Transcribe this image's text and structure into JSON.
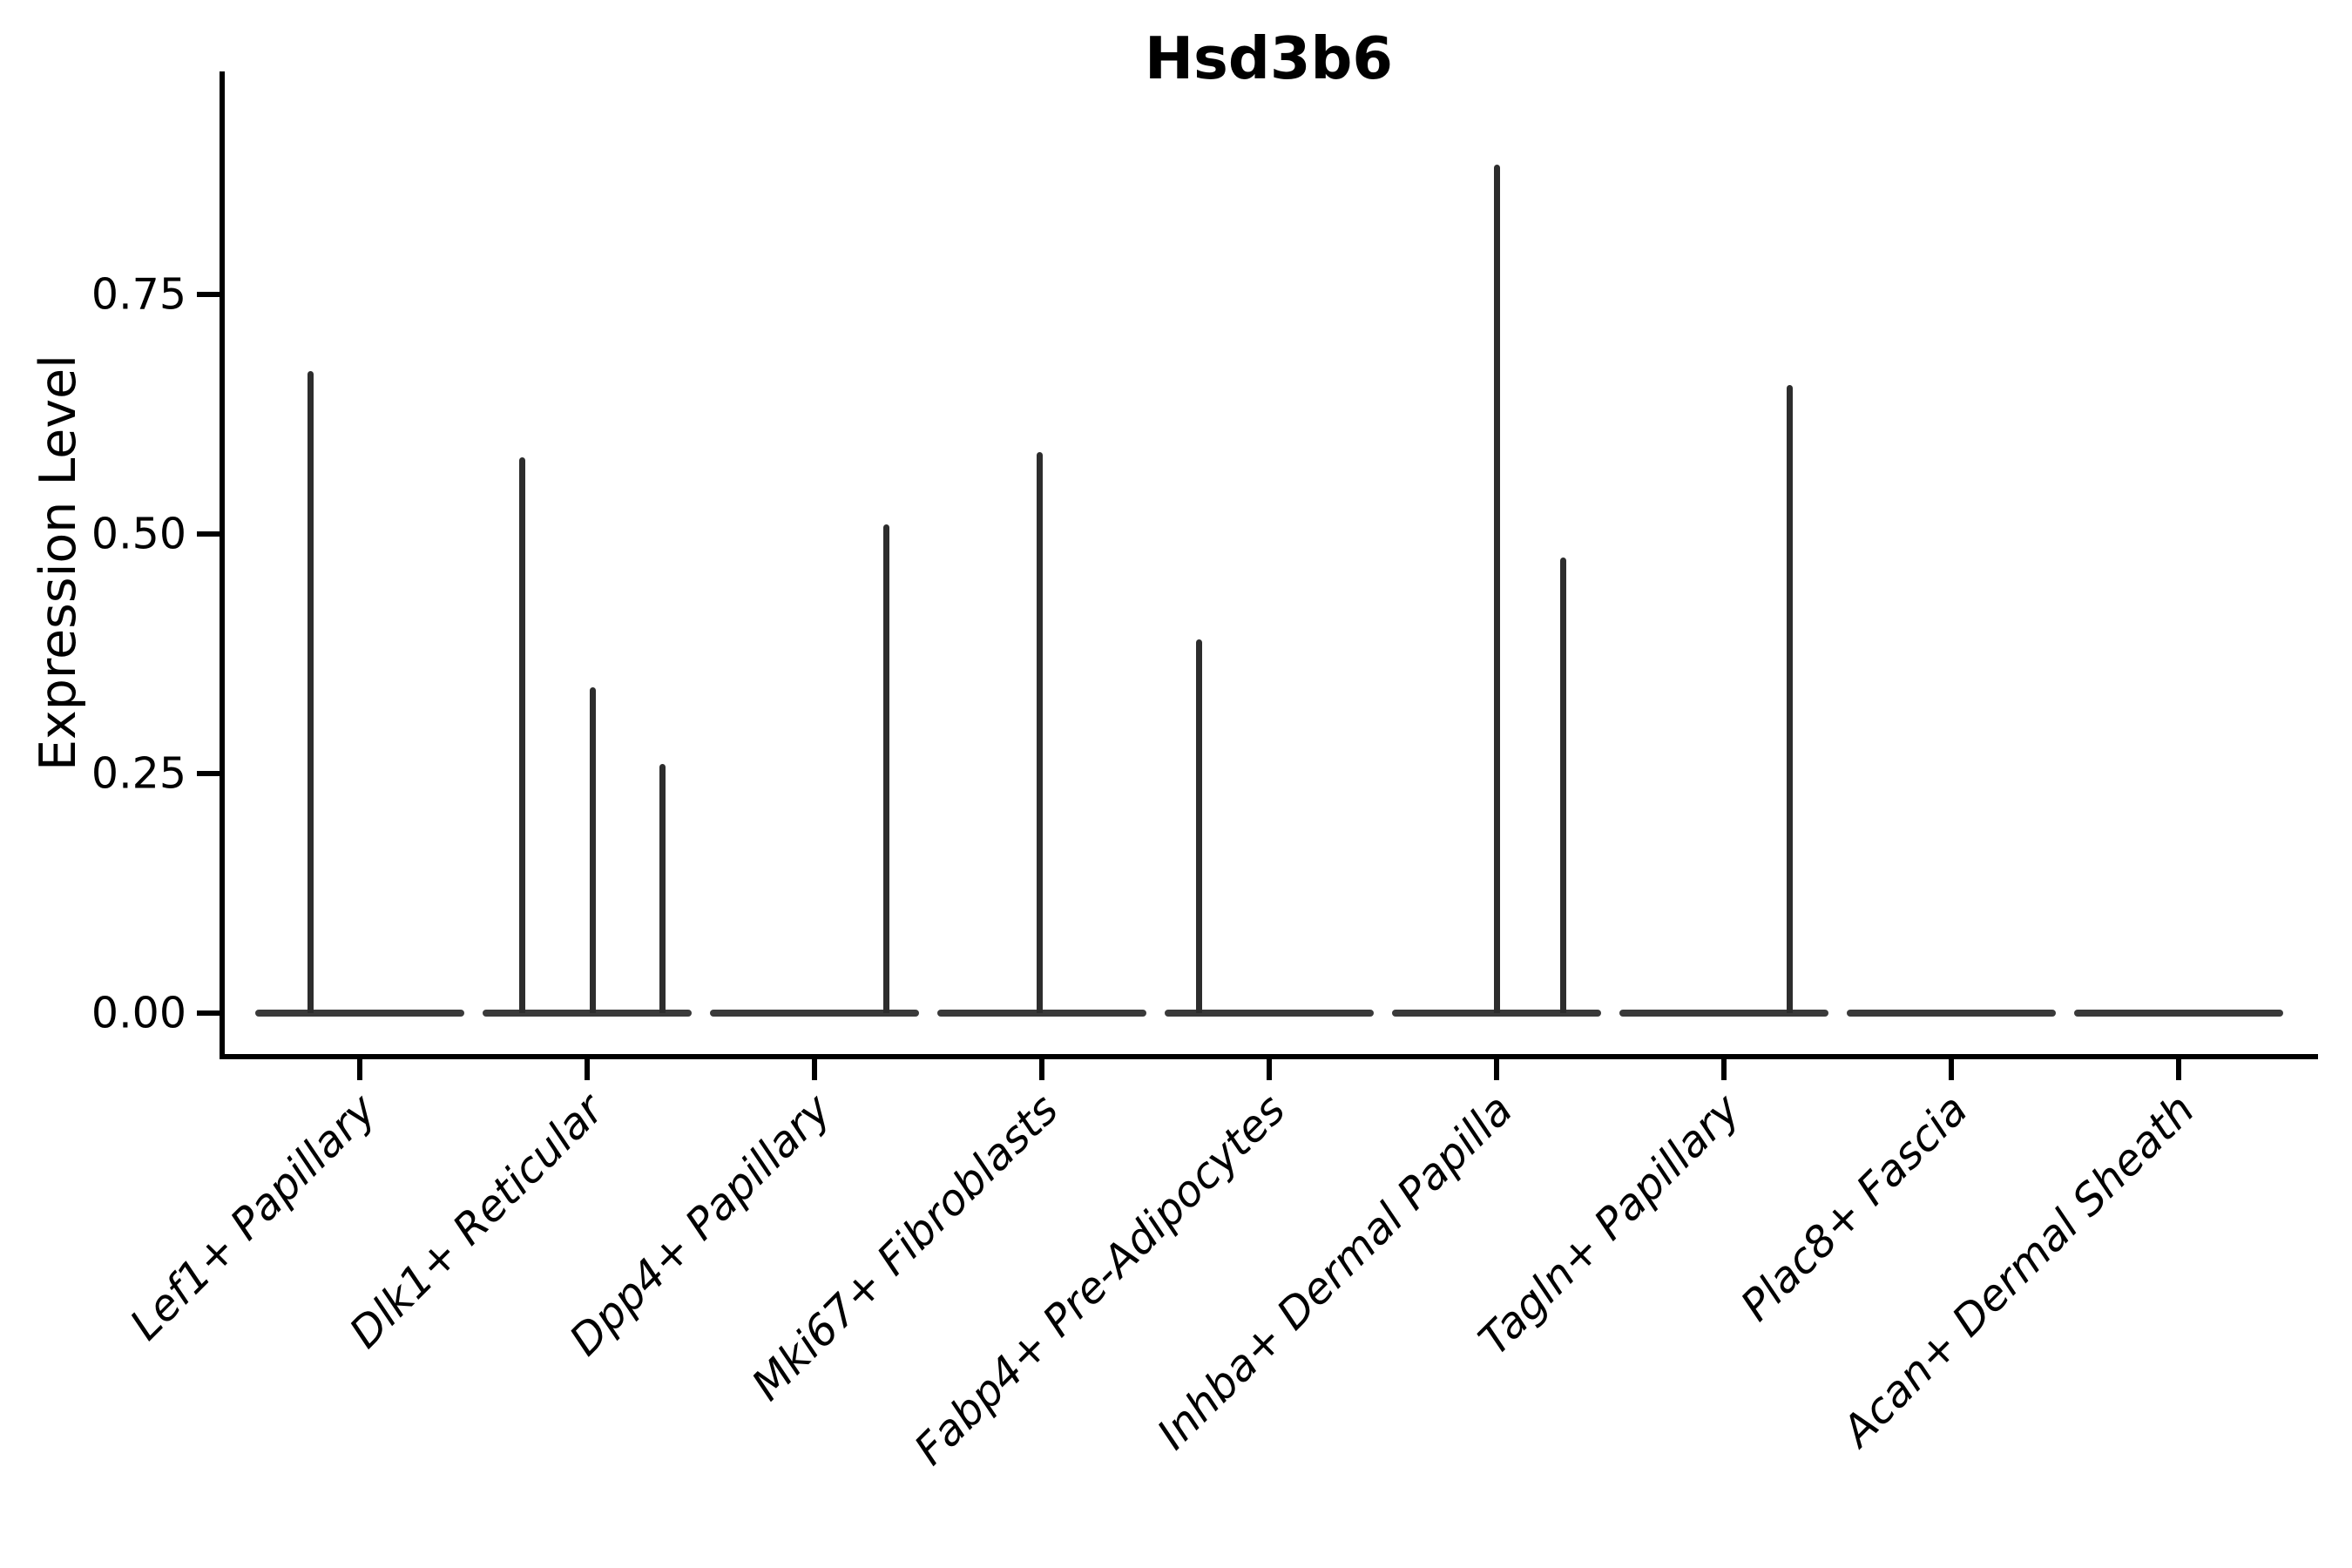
{
  "title": "Hsd3b6",
  "chart_data": {
    "type": "violin",
    "title": "Hsd3b6",
    "xlabel": "",
    "ylabel": "Expression Level",
    "ytick_labels": [
      "0.00",
      "0.25",
      "0.50",
      "0.75"
    ],
    "ytick_values": [
      0,
      0.25,
      0.5,
      0.75
    ],
    "ylim": [
      0,
      0.985
    ],
    "grid": false,
    "legend": false,
    "categories": [
      "Lef1+ Papillary",
      "Dlk1+ Reticular",
      "Dpp4+ Papillary",
      "Mki67+ Fibroblasts",
      "Fabp4+ Pre-Adipocytes",
      "Inhba+ Dermal Papilla",
      "Tagln+ Papillary",
      "Plac8+ Fascia",
      "Acan+ Dermal Sheath"
    ],
    "violins": [
      {
        "category": "Lef1+ Papillary",
        "baseline_value": 0.0,
        "spikes": [
          {
            "value": 0.67,
            "offset_frac": -0.47
          }
        ]
      },
      {
        "category": "Dlk1+ Reticular",
        "baseline_value": 0.0,
        "spikes": [
          {
            "value": 0.58,
            "offset_frac": -0.625
          },
          {
            "value": 0.34,
            "offset_frac": 0.05
          },
          {
            "value": 0.26,
            "offset_frac": 0.72
          }
        ]
      },
      {
        "category": "Dpp4+ Papillary",
        "baseline_value": 0.0,
        "spikes": [
          {
            "value": 0.51,
            "offset_frac": 0.69
          }
        ]
      },
      {
        "category": "Mki67+ Fibroblasts",
        "baseline_value": 0.0,
        "spikes": [
          {
            "value": 0.585,
            "offset_frac": -0.025
          }
        ]
      },
      {
        "category": "Fabp4+ Pre-Adipocytes",
        "baseline_value": 0.0,
        "spikes": [
          {
            "value": 0.39,
            "offset_frac": -0.675
          }
        ]
      },
      {
        "category": "Inhba+ Dermal Papilla",
        "baseline_value": 0.0,
        "spikes": [
          {
            "value": 0.885,
            "offset_frac": 0.0
          },
          {
            "value": 0.475,
            "offset_frac": 0.64
          }
        ]
      },
      {
        "category": "Tagln+ Papillary",
        "baseline_value": 0.0,
        "spikes": [
          {
            "value": 0.655,
            "offset_frac": 0.63
          }
        ]
      },
      {
        "category": "Plac8+ Fascia",
        "baseline_value": 0.0,
        "spikes": []
      },
      {
        "category": "Acan+ Dermal Sheath",
        "baseline_value": 0.0,
        "spikes": []
      }
    ],
    "colors": {
      "spike": "#2d2d2d",
      "baseline": "#3a3a3a",
      "axis": "#000000",
      "text": "#000000",
      "background": "#ffffff"
    }
  }
}
